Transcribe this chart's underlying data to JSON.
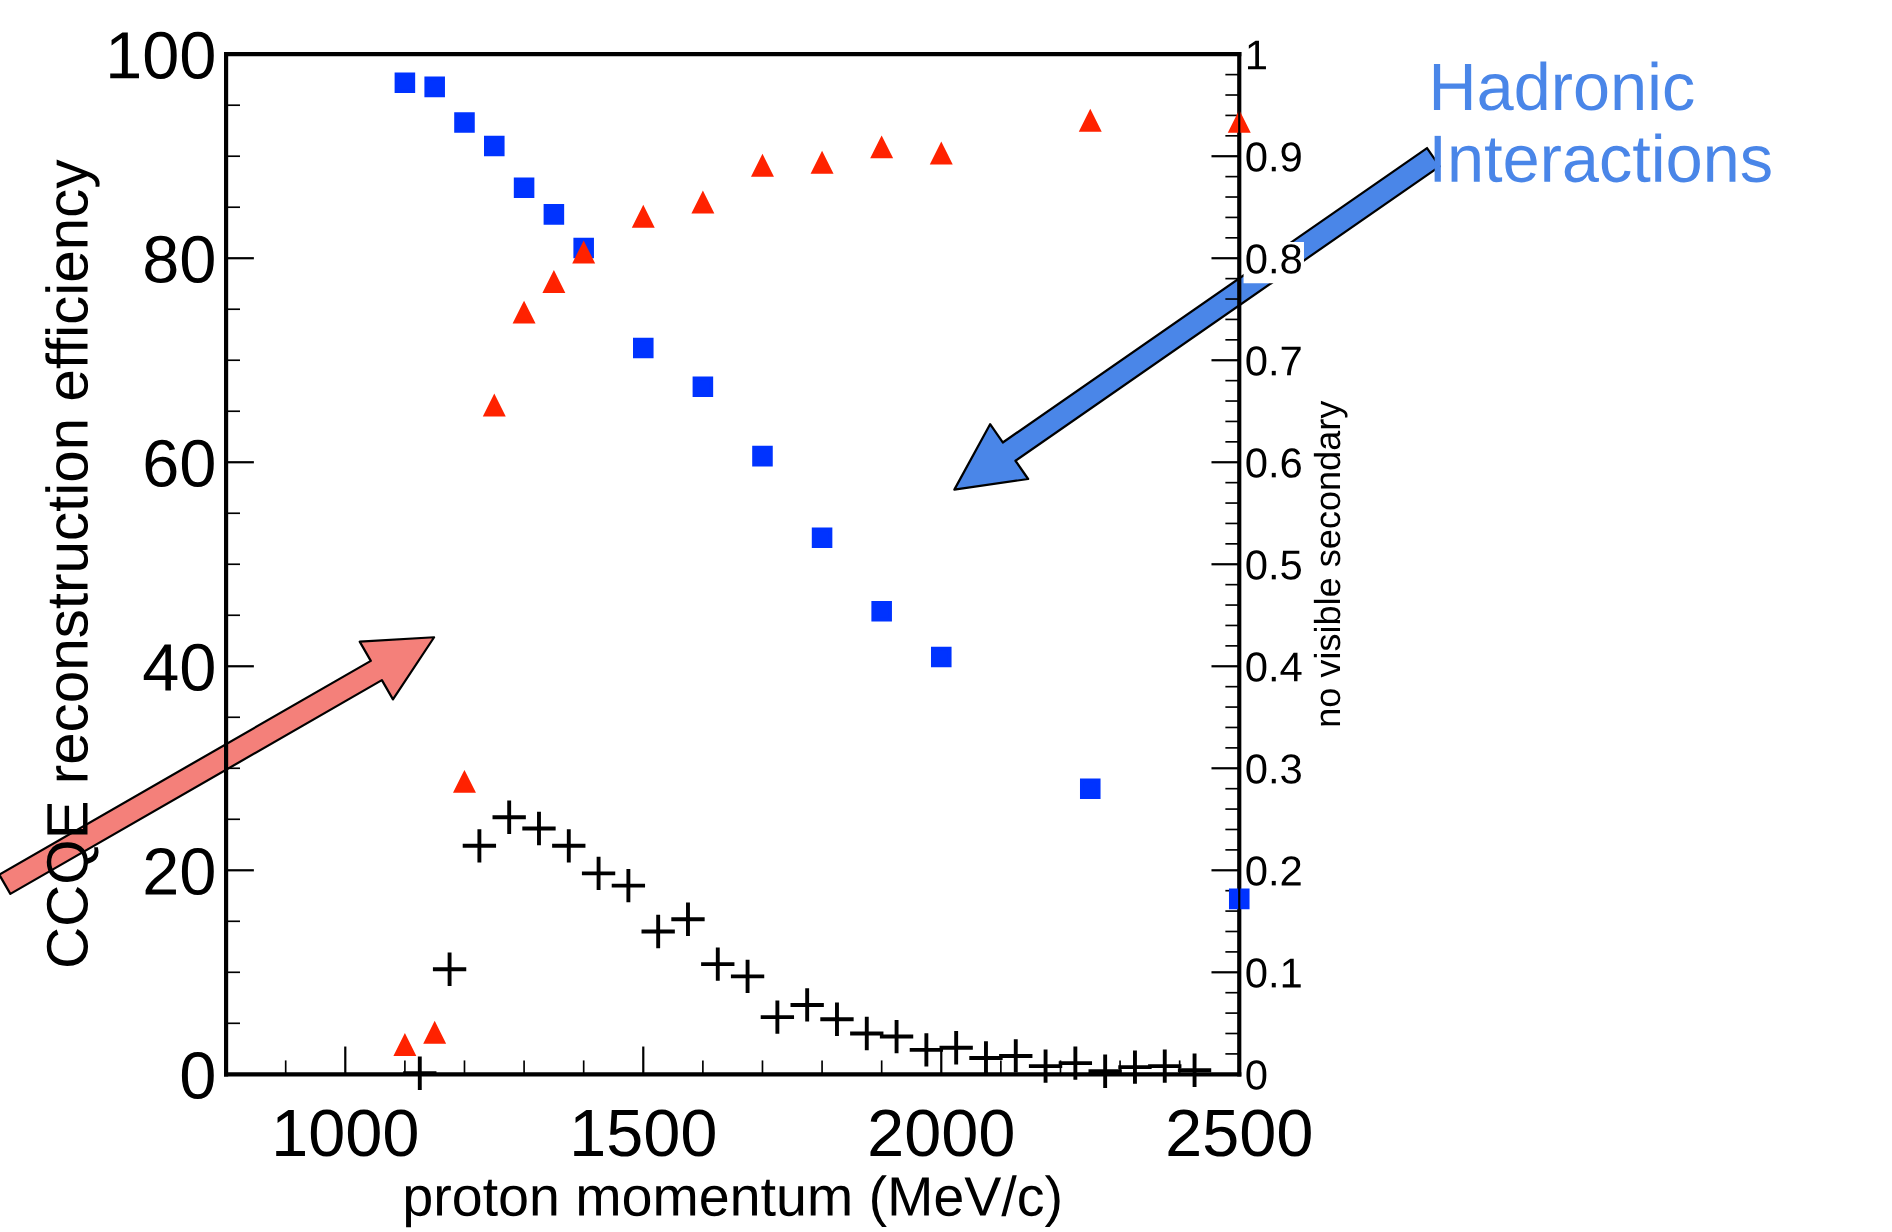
{
  "chart_data": {
    "type": "scatter",
    "xlabel": "proton momentum (MeV/c)",
    "ylabel": "CCQE reconstruction efficiency",
    "y2label": "no visible secondary",
    "xlim": [
      800,
      2500
    ],
    "xticks": [
      1000,
      1500,
      2000,
      2500
    ],
    "ylim": [
      0,
      100
    ],
    "yticks": [
      0,
      20,
      40,
      60,
      80,
      100
    ],
    "y2lim": [
      0,
      1
    ],
    "y2ticks": [
      0,
      0.1,
      0.2,
      0.3,
      0.4,
      0.5,
      0.6,
      0.7,
      0.8,
      0.9,
      1
    ],
    "grid": false,
    "legend": false,
    "series": [
      {
        "color": "#0033ff",
        "marker": "square",
        "axis": "y2",
        "x": [
          1100,
          1150,
          1200,
          1250,
          1300,
          1350,
          1400,
          1500,
          1600,
          1700,
          1800,
          1900,
          2000,
          2250,
          2500
        ],
        "values": [
          0.972,
          0.968,
          0.933,
          0.91,
          0.869,
          0.843,
          0.81,
          0.712,
          0.674,
          0.606,
          0.526,
          0.454,
          0.409,
          0.28,
          0.172
        ]
      },
      {
        "color": "#ff2200",
        "marker": "triangle",
        "axis": "y2",
        "x": [
          1100,
          1150,
          1200,
          1250,
          1300,
          1350,
          1400,
          1500,
          1600,
          1700,
          1800,
          1900,
          2000,
          2250,
          2500
        ],
        "values": [
          0.028,
          0.04,
          0.286,
          0.655,
          0.746,
          0.776,
          0.805,
          0.84,
          0.854,
          0.89,
          0.893,
          0.908,
          0.902,
          0.934,
          0.933
        ]
      },
      {
        "color": "#000000",
        "marker": "cross",
        "x": [
          1125,
          1175,
          1225,
          1275,
          1325,
          1375,
          1425,
          1475,
          1525,
          1575,
          1625,
          1675,
          1725,
          1775,
          1825,
          1875,
          1925,
          1975,
          2025,
          2075,
          2125,
          2175,
          2225,
          2275,
          2325,
          2375,
          2425
        ],
        "values": [
          0.1,
          10.3,
          22.4,
          25.2,
          24.1,
          22.4,
          19.7,
          18.5,
          14.0,
          15.2,
          10.8,
          9.6,
          5.6,
          6.8,
          5.4,
          4.0,
          3.7,
          2.4,
          2.6,
          1.6,
          1.8,
          0.8,
          1.1,
          0.3,
          0.7,
          0.8,
          0.4
        ]
      }
    ],
    "annotations": [
      "Hadronic\nInteractions"
    ]
  }
}
